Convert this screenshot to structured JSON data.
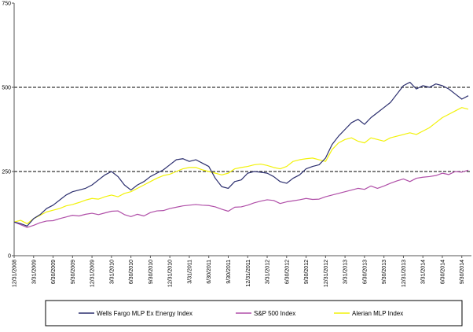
{
  "chart_data": {
    "type": "line",
    "title": "",
    "xlabel": "",
    "ylabel": "",
    "ylim": [
      0,
      750
    ],
    "y_ticks": [
      "0",
      "250",
      "500",
      "750"
    ],
    "reference_lines": [
      250,
      500
    ],
    "grid": false,
    "legend_position": "bottom",
    "x_tick_labels": [
      "12/31/2008",
      "3/31/2009",
      "6/30/2009",
      "9/30/2009",
      "12/31/2009",
      "3/31/2010",
      "6/30/2010",
      "9/30/2010",
      "12/31/2010",
      "3/31/2011",
      "6/30/2011",
      "9/30/2011",
      "12/31/2011",
      "3/31/2012",
      "6/30/2012",
      "9/30/2012",
      "12/31/2012",
      "3/31/2013",
      "6/30/2013",
      "9/30/2013",
      "12/31/2013",
      "3/31/2014",
      "6/30/2014",
      "9/30/2014"
    ],
    "x": [
      "12/31/2008",
      "1/31/2009",
      "2/28/2009",
      "3/31/2009",
      "4/30/2009",
      "5/31/2009",
      "6/30/2009",
      "7/31/2009",
      "8/31/2009",
      "9/30/2009",
      "10/31/2009",
      "11/30/2009",
      "12/31/2009",
      "1/31/2010",
      "2/28/2010",
      "3/31/2010",
      "4/30/2010",
      "5/31/2010",
      "6/30/2010",
      "7/31/2010",
      "8/31/2010",
      "9/30/2010",
      "10/31/2010",
      "11/30/2010",
      "12/31/2010",
      "1/31/2011",
      "2/28/2011",
      "3/31/2011",
      "4/30/2011",
      "5/31/2011",
      "6/30/2011",
      "7/31/2011",
      "8/31/2011",
      "9/30/2011",
      "10/31/2011",
      "11/30/2011",
      "12/31/2011",
      "1/31/2012",
      "2/29/2012",
      "3/31/2012",
      "4/30/2012",
      "5/31/2012",
      "6/30/2012",
      "7/31/2012",
      "8/31/2012",
      "9/30/2012",
      "10/31/2012",
      "11/30/2012",
      "12/31/2012",
      "1/31/2013",
      "2/28/2013",
      "3/31/2013",
      "4/30/2013",
      "5/31/2013",
      "6/30/2013",
      "7/31/2013",
      "8/31/2013",
      "9/30/2013",
      "10/31/2013",
      "11/30/2013",
      "12/31/2013",
      "1/31/2014",
      "2/28/2014",
      "3/31/2014",
      "4/30/2014",
      "5/31/2014",
      "6/30/2014",
      "7/31/2014",
      "8/31/2014",
      "9/30/2014",
      "10/31/2014"
    ],
    "series": [
      {
        "name": "Wells Fargo MLP Ex Energy Index",
        "color": "#2b2e6e",
        "values": [
          100,
          95,
          88,
          110,
          122,
          140,
          150,
          165,
          180,
          190,
          195,
          200,
          210,
          225,
          240,
          250,
          235,
          210,
          195,
          210,
          220,
          235,
          245,
          255,
          270,
          285,
          288,
          280,
          285,
          275,
          265,
          230,
          205,
          200,
          220,
          225,
          245,
          250,
          248,
          245,
          235,
          220,
          215,
          230,
          240,
          258,
          265,
          270,
          290,
          330,
          355,
          375,
          395,
          405,
          390,
          410,
          425,
          440,
          455,
          480,
          505,
          515,
          495,
          505,
          500,
          510,
          505,
          495,
          480,
          465,
          475
        ]
      },
      {
        "name": "S&P 500 Index",
        "color": "#b04fa8",
        "values": [
          100,
          92,
          84,
          90,
          98,
          103,
          104,
          110,
          115,
          120,
          118,
          123,
          126,
          122,
          127,
          132,
          133,
          122,
          116,
          123,
          118,
          128,
          133,
          134,
          140,
          144,
          148,
          150,
          152,
          150,
          149,
          145,
          138,
          132,
          144,
          145,
          150,
          157,
          162,
          166,
          164,
          155,
          160,
          163,
          166,
          170,
          167,
          168,
          175,
          180,
          185,
          190,
          195,
          200,
          197,
          207,
          200,
          207,
          215,
          222,
          228,
          220,
          230,
          233,
          235,
          238,
          245,
          241,
          250,
          248,
          254
        ]
      },
      {
        "name": "Alerian MLP Index",
        "color": "#f2f20a",
        "values": [
          100,
          105,
          95,
          110,
          120,
          130,
          135,
          140,
          148,
          152,
          158,
          165,
          170,
          168,
          175,
          180,
          175,
          185,
          190,
          200,
          210,
          220,
          230,
          238,
          242,
          250,
          258,
          262,
          262,
          255,
          250,
          245,
          240,
          245,
          258,
          262,
          265,
          270,
          272,
          268,
          262,
          258,
          265,
          280,
          285,
          288,
          290,
          285,
          280,
          315,
          335,
          345,
          350,
          340,
          335,
          350,
          345,
          340,
          350,
          355,
          360,
          365,
          360,
          370,
          380,
          395,
          410,
          420,
          430,
          440,
          435
        ]
      }
    ]
  }
}
